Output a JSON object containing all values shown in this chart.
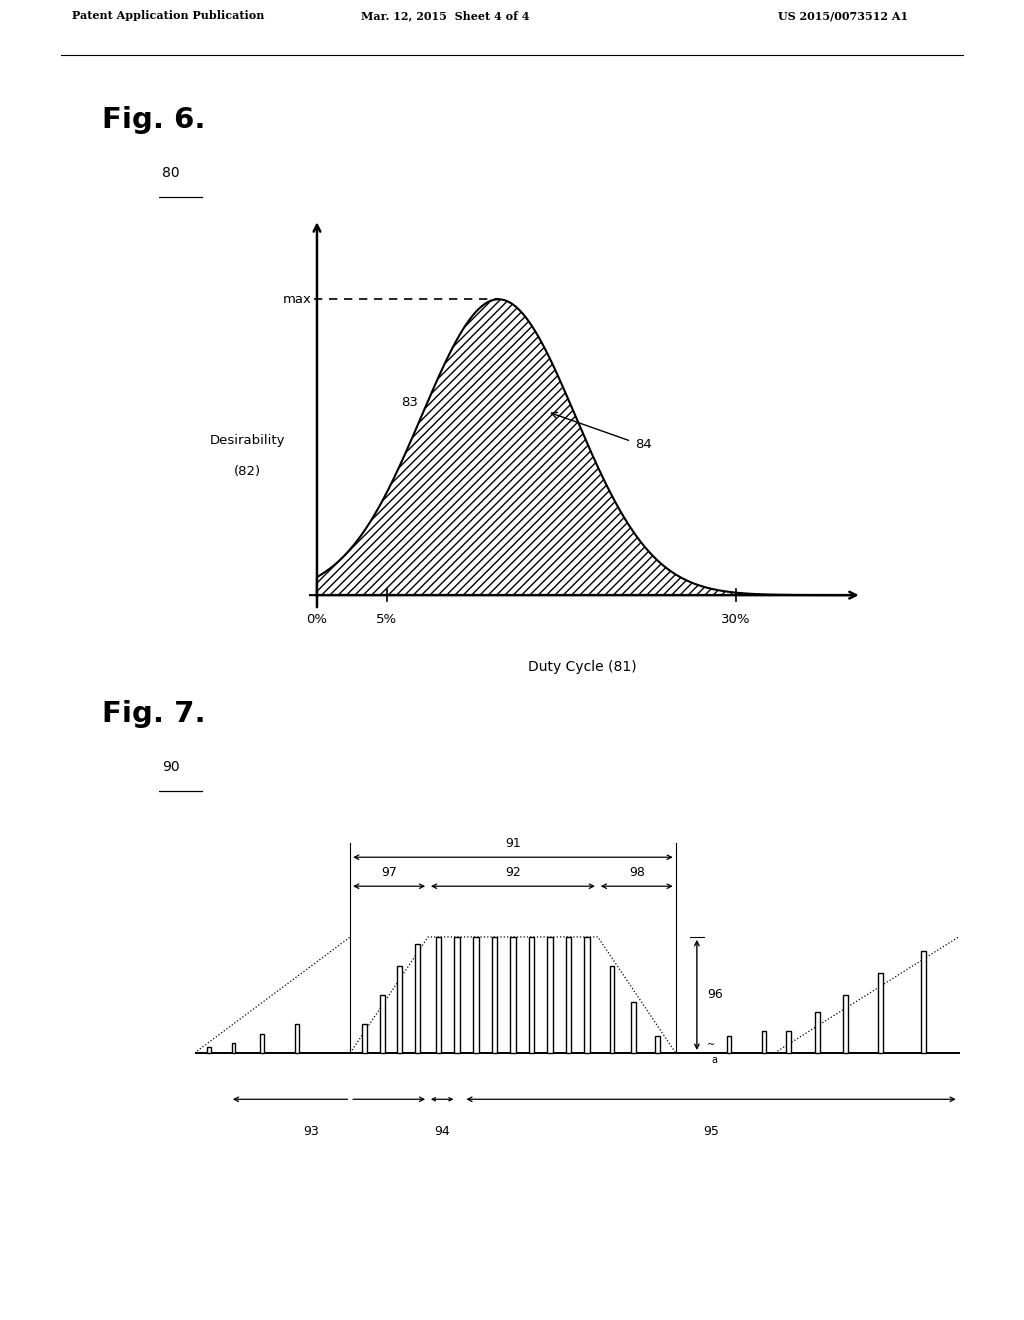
{
  "header_left": "Patent Application Publication",
  "header_mid": "Mar. 12, 2015  Sheet 4 of 4",
  "header_right": "US 2015/0073512 A1",
  "fig6_title": "Fig. 6.",
  "fig6_ref": "80",
  "fig6_ylabel_1": "Desirability",
  "fig6_ylabel_2": "(82)",
  "fig6_xlabel": "Duty Cycle (81)",
  "fig6_xticks": [
    "0%",
    "5%",
    "30%"
  ],
  "fig6_ymax_label": "max",
  "fig6_label83": "83",
  "fig6_label84": "84",
  "fig7_title": "Fig. 7.",
  "fig7_ref": "90",
  "d91": "91",
  "d92": "92",
  "d93": "93",
  "d94": "94",
  "d95": "95",
  "d96": "96",
  "d97": "97",
  "d98": "98",
  "bg_color": "#ffffff",
  "black": "#000000"
}
